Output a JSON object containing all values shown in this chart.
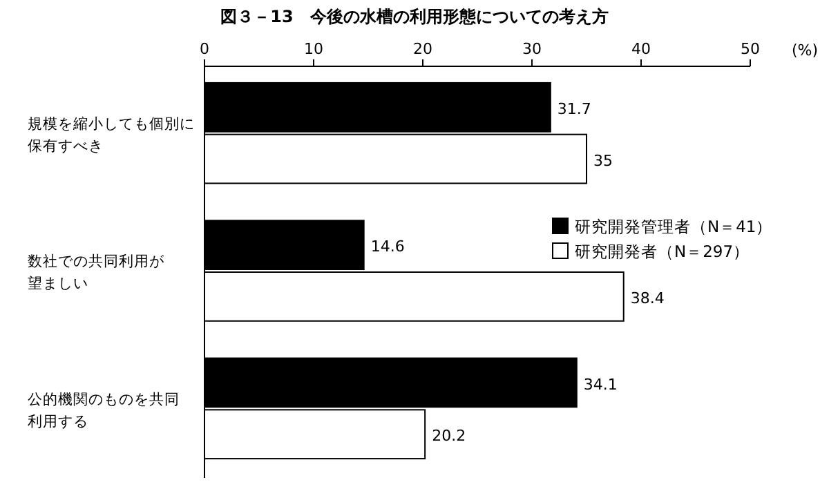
{
  "chart_data": {
    "type": "bar",
    "orientation": "horizontal",
    "title": "図３－13　今後の水槽の利用形態についての考え方",
    "xlabel": "(%)",
    "categories": [
      "規模を縮小しても個別に保有すべき",
      "数社での共同利用が望ましい",
      "公的機関のものを共同利用する"
    ],
    "series": [
      {
        "name": "研究開発管理者（N＝41）",
        "color": "#000000",
        "values": [
          31.7,
          14.6,
          34.1
        ]
      },
      {
        "name": "研究開発者（N＝297）",
        "color": "#ffffff",
        "values": [
          35,
          38.4,
          20.2
        ]
      }
    ],
    "xlim": [
      0,
      50
    ],
    "xticks": [
      0,
      10,
      20,
      30,
      40,
      50
    ],
    "data_labels": true,
    "legend": "right",
    "grid": false
  }
}
